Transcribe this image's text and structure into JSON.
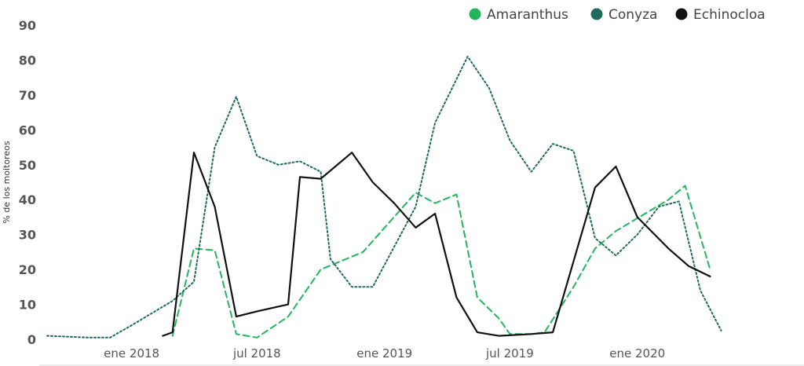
{
  "chart_data": {
    "type": "line",
    "ylabel": "% de los moitoreos",
    "ylim": [
      0,
      90
    ],
    "yticks": [
      "0",
      "10",
      "20",
      "30",
      "40",
      "50",
      "60",
      "70",
      "80",
      "90"
    ],
    "xlim": [
      "2017-09-01",
      "2020-08-15"
    ],
    "xticks": [
      {
        "label": "ene 2018",
        "date": "2018-01-01"
      },
      {
        "label": "jul 2018",
        "date": "2018-07-01"
      },
      {
        "label": "ene 2019",
        "date": "2019-01-01"
      },
      {
        "label": "jul 2019",
        "date": "2019-07-01"
      },
      {
        "label": "ene 2020",
        "date": "2020-01-01"
      }
    ],
    "legend_position": "top-right",
    "grid": false,
    "series": [
      {
        "name": "Amaranthus",
        "color": "#22b55a",
        "style": "dashed",
        "points": [
          [
            "2018-03-01",
            1
          ],
          [
            "2018-04-01",
            26
          ],
          [
            "2018-05-01",
            25.5
          ],
          [
            "2018-06-01",
            1.5
          ],
          [
            "2018-07-01",
            0.5
          ],
          [
            "2018-08-15",
            6.5
          ],
          [
            "2018-10-01",
            20
          ],
          [
            "2018-12-01",
            25
          ],
          [
            "2019-02-15",
            42
          ],
          [
            "2019-03-15",
            39
          ],
          [
            "2019-04-15",
            41.5
          ],
          [
            "2019-05-15",
            12
          ],
          [
            "2019-06-15",
            6
          ],
          [
            "2019-07-01",
            1.5
          ],
          [
            "2019-08-01",
            1.5
          ],
          [
            "2019-08-20",
            2
          ],
          [
            "2019-10-01",
            15
          ],
          [
            "2019-11-01",
            26
          ],
          [
            "2019-12-01",
            31
          ],
          [
            "2020-02-15",
            40
          ],
          [
            "2020-03-10",
            44
          ],
          [
            "2020-04-15",
            20
          ]
        ]
      },
      {
        "name": "Conyza",
        "color": "#1f6b5b",
        "style": "dotted",
        "points": [
          [
            "2017-09-01",
            1
          ],
          [
            "2017-11-01",
            0.5
          ],
          [
            "2017-12-01",
            0.5
          ],
          [
            "2018-01-01",
            4
          ],
          [
            "2018-03-01",
            11
          ],
          [
            "2018-04-01",
            16.5
          ],
          [
            "2018-05-01",
            55
          ],
          [
            "2018-06-01",
            69.5
          ],
          [
            "2018-07-01",
            52.5
          ],
          [
            "2018-08-01",
            50
          ],
          [
            "2018-09-01",
            51
          ],
          [
            "2018-10-01",
            48
          ],
          [
            "2018-10-15",
            23
          ],
          [
            "2018-11-15",
            15
          ],
          [
            "2018-12-15",
            15
          ],
          [
            "2019-02-15",
            38
          ],
          [
            "2019-03-15",
            62
          ],
          [
            "2019-05-01",
            81
          ],
          [
            "2019-06-01",
            72
          ],
          [
            "2019-07-01",
            57
          ],
          [
            "2019-08-01",
            48
          ],
          [
            "2019-09-01",
            56
          ],
          [
            "2019-10-01",
            54
          ],
          [
            "2019-11-01",
            29
          ],
          [
            "2019-12-01",
            24
          ],
          [
            "2020-01-01",
            30
          ],
          [
            "2020-02-01",
            38
          ],
          [
            "2020-03-01",
            39.5
          ],
          [
            "2020-04-01",
            14
          ],
          [
            "2020-05-01",
            2.5
          ]
        ]
      },
      {
        "name": "Echinocloa",
        "color": "#111111",
        "style": "solid",
        "points": [
          [
            "2018-02-15",
            1
          ],
          [
            "2018-03-01",
            2
          ],
          [
            "2018-04-01",
            53.5
          ],
          [
            "2018-05-01",
            38
          ],
          [
            "2018-06-01",
            6.5
          ],
          [
            "2018-07-01",
            8
          ],
          [
            "2018-08-15",
            10
          ],
          [
            "2018-09-01",
            46.5
          ],
          [
            "2018-10-01",
            46
          ],
          [
            "2018-11-15",
            53.5
          ],
          [
            "2018-12-15",
            45
          ],
          [
            "2019-01-15",
            39
          ],
          [
            "2019-02-15",
            32
          ],
          [
            "2019-03-15",
            36
          ],
          [
            "2019-04-15",
            12
          ],
          [
            "2019-05-15",
            2
          ],
          [
            "2019-06-15",
            1
          ],
          [
            "2019-08-01",
            1.5
          ],
          [
            "2019-09-01",
            2
          ],
          [
            "2019-11-01",
            43.5
          ],
          [
            "2019-12-01",
            49.5
          ],
          [
            "2020-01-01",
            35
          ],
          [
            "2020-02-15",
            26
          ],
          [
            "2020-03-15",
            21
          ],
          [
            "2020-04-15",
            18
          ]
        ]
      }
    ]
  }
}
